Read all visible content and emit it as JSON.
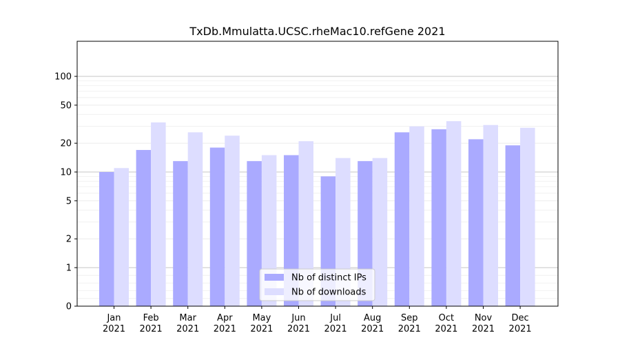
{
  "chart_data": {
    "type": "bar",
    "title": "TxDb.Mmulatta.UCSC.rheMac10.refGene 2021",
    "xlabel": "",
    "ylabel": "",
    "y_scale": "symlog",
    "ylim": [
      0,
      130
    ],
    "grid": true,
    "legend_position": "lower center",
    "categories": [
      [
        "Jan",
        "2021"
      ],
      [
        "Feb",
        "2021"
      ],
      [
        "Mar",
        "2021"
      ],
      [
        "Apr",
        "2021"
      ],
      [
        "May",
        "2021"
      ],
      [
        "Jun",
        "2021"
      ],
      [
        "Jul",
        "2021"
      ],
      [
        "Aug",
        "2021"
      ],
      [
        "Sep",
        "2021"
      ],
      [
        "Oct",
        "2021"
      ],
      [
        "Nov",
        "2021"
      ],
      [
        "Dec",
        "2021"
      ]
    ],
    "y_ticks": [
      {
        "value": 0,
        "label": "0"
      },
      {
        "value": 1,
        "label": "1"
      },
      {
        "value": 2,
        "label": "2"
      },
      {
        "value": 5,
        "label": "5"
      },
      {
        "value": 10,
        "label": "10"
      },
      {
        "value": 20,
        "label": "20"
      },
      {
        "value": 50,
        "label": "50"
      },
      {
        "value": 100,
        "label": "100"
      }
    ],
    "series": [
      {
        "name": "Nb of distinct IPs",
        "color": "#aaaaff",
        "values": [
          10,
          17,
          13,
          18,
          13,
          15,
          9,
          13,
          26,
          28,
          22,
          19
        ]
      },
      {
        "name": "Nb of downloads",
        "color": "#ddddff",
        "values": [
          11,
          33,
          26,
          24,
          15,
          21,
          14,
          14,
          30,
          34,
          31,
          29
        ]
      }
    ]
  }
}
